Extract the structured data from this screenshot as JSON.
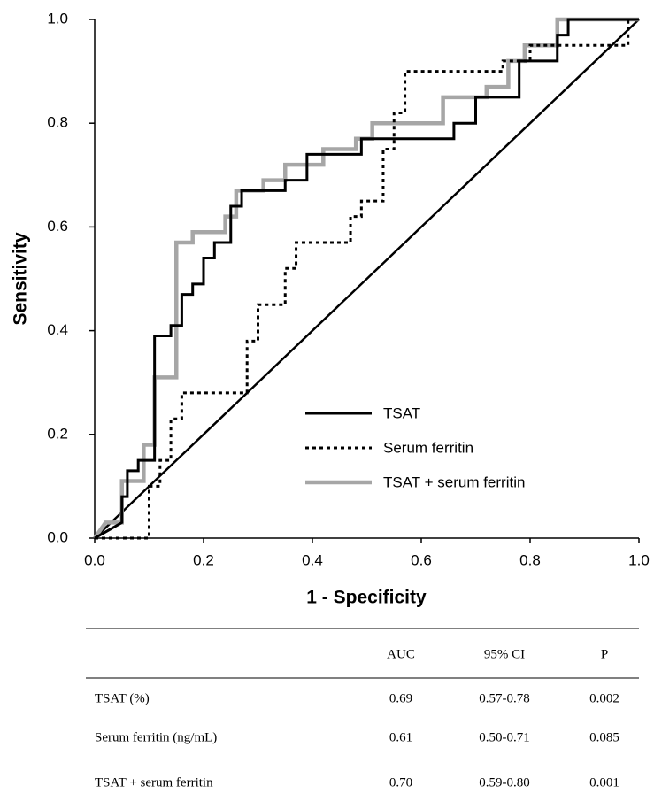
{
  "chart_data": {
    "type": "line",
    "x_label": "1 - Specificity",
    "y_label": "Sensitivity",
    "xlim": [
      0,
      1
    ],
    "ylim": [
      0,
      1
    ],
    "xticks": [
      {
        "value": 0,
        "label": "0.0"
      },
      0.2,
      0.4,
      0.6,
      0.8,
      {
        "value": 1,
        "label": "1.0"
      }
    ],
    "yticks": [
      {
        "value": 0,
        "label": "0.0"
      },
      0.2,
      0.4,
      0.6,
      0.8,
      {
        "value": 1,
        "label": "1.0"
      }
    ],
    "grid": false,
    "legend": "lower right",
    "series": [
      {
        "name": "TSAT",
        "color": "#000000",
        "style": "solid",
        "x": [
          0,
          0.05,
          0.05,
          0.06,
          0.06,
          0.08,
          0.08,
          0.11,
          0.11,
          0.14,
          0.14,
          0.16,
          0.16,
          0.18,
          0.18,
          0.2,
          0.2,
          0.22,
          0.22,
          0.25,
          0.25,
          0.27,
          0.27,
          0.35,
          0.35,
          0.39,
          0.39,
          0.49,
          0.49,
          0.66,
          0.66,
          0.7,
          0.7,
          0.78,
          0.78,
          0.85,
          0.85,
          0.87,
          0.87,
          1
        ],
        "values": [
          0,
          0.03,
          0.08,
          0.08,
          0.13,
          0.13,
          0.15,
          0.15,
          0.39,
          0.39,
          0.41,
          0.41,
          0.47,
          0.47,
          0.49,
          0.49,
          0.54,
          0.54,
          0.57,
          0.57,
          0.64,
          0.64,
          0.67,
          0.67,
          0.69,
          0.69,
          0.74,
          0.74,
          0.77,
          0.77,
          0.8,
          0.8,
          0.85,
          0.85,
          0.92,
          0.92,
          0.97,
          0.97,
          1,
          1
        ]
      },
      {
        "name": "Serum ferritin",
        "color": "#000000",
        "style": "dotted",
        "x": [
          0,
          0.1,
          0.1,
          0.12,
          0.12,
          0.14,
          0.14,
          0.16,
          0.16,
          0.28,
          0.28,
          0.3,
          0.3,
          0.35,
          0.35,
          0.37,
          0.37,
          0.47,
          0.47,
          0.49,
          0.49,
          0.53,
          0.53,
          0.55,
          0.55,
          0.57,
          0.57,
          0.75,
          0.75,
          0.8,
          0.8,
          0.98,
          0.98,
          1
        ],
        "values": [
          0,
          0,
          0.1,
          0.1,
          0.15,
          0.15,
          0.23,
          0.23,
          0.28,
          0.28,
          0.38,
          0.38,
          0.45,
          0.45,
          0.52,
          0.52,
          0.57,
          0.57,
          0.62,
          0.62,
          0.65,
          0.65,
          0.75,
          0.75,
          0.82,
          0.82,
          0.9,
          0.9,
          0.92,
          0.92,
          0.95,
          0.95,
          1,
          1
        ]
      },
      {
        "name": "TSAT + serum ferritin",
        "color": "#a6a6a6",
        "style": "solid",
        "x": [
          0,
          0.02,
          0.05,
          0.05,
          0.09,
          0.09,
          0.11,
          0.11,
          0.15,
          0.15,
          0.18,
          0.18,
          0.24,
          0.24,
          0.26,
          0.26,
          0.31,
          0.31,
          0.35,
          0.35,
          0.42,
          0.42,
          0.48,
          0.48,
          0.51,
          0.51,
          0.64,
          0.64,
          0.72,
          0.72,
          0.76,
          0.76,
          0.79,
          0.79,
          0.85,
          0.85,
          1
        ],
        "values": [
          0,
          0.03,
          0.03,
          0.11,
          0.11,
          0.18,
          0.18,
          0.31,
          0.31,
          0.57,
          0.57,
          0.59,
          0.59,
          0.62,
          0.62,
          0.67,
          0.67,
          0.69,
          0.69,
          0.72,
          0.72,
          0.75,
          0.75,
          0.77,
          0.77,
          0.8,
          0.8,
          0.85,
          0.85,
          0.87,
          0.87,
          0.92,
          0.92,
          0.95,
          0.95,
          1,
          1
        ]
      }
    ]
  },
  "table": {
    "columns": [
      "AUC",
      "95% CI",
      "P"
    ],
    "rows": [
      [
        "TSAT (%)",
        "0.69",
        "0.57-0.78",
        "0.002"
      ],
      [
        "Serum ferritin (ng/mL)",
        "0.61",
        "0.50-0.71",
        "0.085"
      ],
      [
        "TSAT + serum ferritin",
        "0.70",
        "0.59-0.80",
        "0.001"
      ]
    ]
  }
}
